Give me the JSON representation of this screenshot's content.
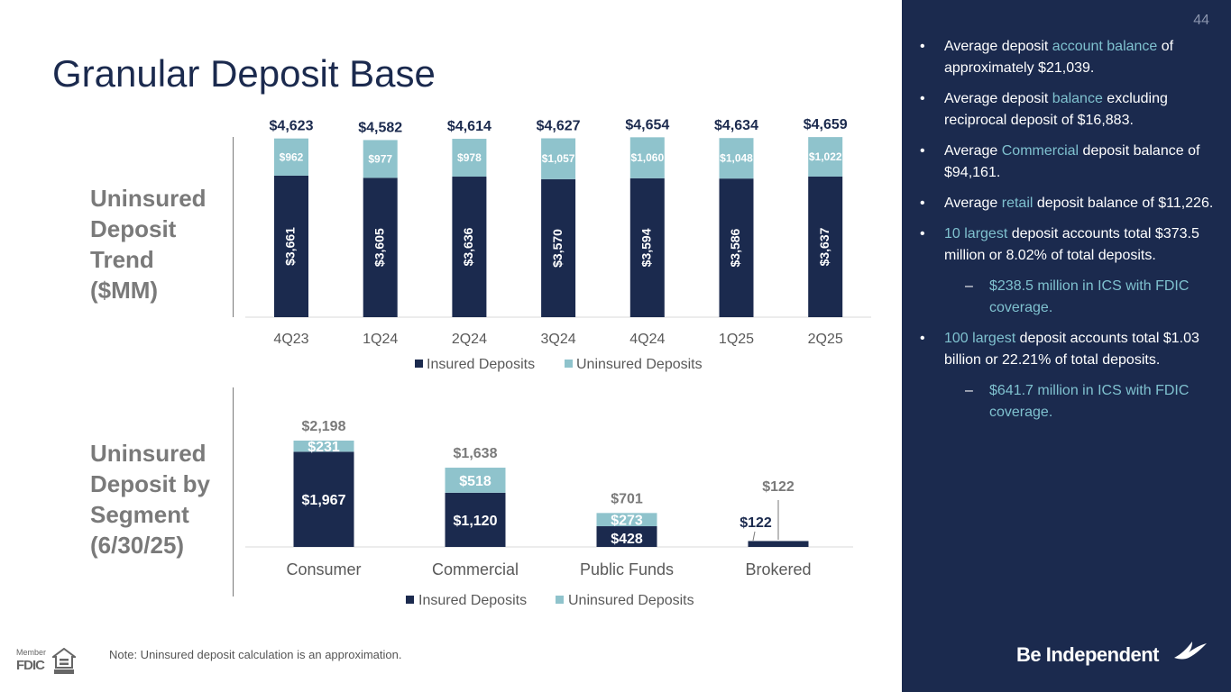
{
  "title": "Granular Deposit Base",
  "page_number": "44",
  "labels": {
    "trend": [
      "Uninsured",
      "Deposit",
      "Trend",
      "($MM)"
    ],
    "segment": [
      "Uninsured",
      "Deposit by",
      "Segment",
      "(6/30/25)"
    ]
  },
  "note": "Note: Uninsured deposit calculation is an approximation.",
  "footer": {
    "fdic_member": "Member",
    "fdic": "FDIC",
    "brand": "Be Independent"
  },
  "colors": {
    "navy": "#1b2a4e",
    "teal": "#8fc3cc",
    "accent": "#7fc1cf",
    "gray": "#7a7a7a"
  },
  "bullets": [
    {
      "parts": [
        {
          "t": "Average deposit "
        },
        {
          "t": "account balance",
          "hl": true
        },
        {
          "t": " of approximately $21,039."
        }
      ]
    },
    {
      "parts": [
        {
          "t": "Average deposit "
        },
        {
          "t": "balance",
          "hl": true
        },
        {
          "t": " excluding reciprocal deposit of $16,883."
        }
      ]
    },
    {
      "parts": [
        {
          "t": "Average "
        },
        {
          "t": "Commercial",
          "hl": true
        },
        {
          "t": " deposit balance of $94,161."
        }
      ]
    },
    {
      "parts": [
        {
          "t": "Average "
        },
        {
          "t": "retail",
          "hl": true
        },
        {
          "t": " deposit balance of $11,226."
        }
      ]
    },
    {
      "parts": [
        {
          "t": "10 largest",
          "hl": true
        },
        {
          "t": " deposit accounts total $373.5 million or 8.02% of total deposits."
        }
      ]
    },
    {
      "sub": true,
      "parts": [
        {
          "t": "$238.5 million in ICS with FDIC coverage."
        }
      ]
    },
    {
      "parts": [
        {
          "t": "100 largest",
          "hl": true
        },
        {
          "t": " deposit accounts total $1.03 billion or 22.21% of total deposits."
        }
      ]
    },
    {
      "sub": true,
      "parts": [
        {
          "t": "$641.7 million in ICS with FDIC coverage."
        }
      ]
    }
  ],
  "chart_data": [
    {
      "type": "bar",
      "stacked": true,
      "title": "Uninsured Deposit Trend ($MM)",
      "categories": [
        "4Q23",
        "1Q24",
        "2Q24",
        "3Q24",
        "4Q24",
        "1Q25",
        "2Q25"
      ],
      "series": [
        {
          "name": "Insured Deposits",
          "values": [
            3661,
            3605,
            3636,
            3570,
            3594,
            3586,
            3637
          ],
          "labels": [
            "$3,661",
            "$3,605",
            "$3,636",
            "$3,570",
            "$3,594",
            "$3,586",
            "$3,637"
          ]
        },
        {
          "name": "Uninsured Deposits",
          "values": [
            962,
            977,
            978,
            1057,
            1060,
            1048,
            1022
          ],
          "labels": [
            "$962",
            "$977",
            "$978",
            "$1,057",
            "$1,060",
            "$1,048",
            "$1,022"
          ]
        }
      ],
      "totals": [
        "$4,623",
        "$4,582",
        "$4,614",
        "$4,627",
        "$4,654",
        "$4,634",
        "$4,659"
      ],
      "legend": [
        "Insured Deposits",
        "Uninsured Deposits"
      ],
      "legend_position": "bottom"
    },
    {
      "type": "bar",
      "stacked": true,
      "title": "Uninsured Deposit by Segment (6/30/25)",
      "categories": [
        "Consumer",
        "Commercial",
        "Public Funds",
        "Brokered"
      ],
      "series": [
        {
          "name": "Insured Deposits",
          "values": [
            1967,
            1120,
            428,
            122
          ],
          "labels": [
            "$1,967",
            "$1,120",
            "$428",
            "$122"
          ]
        },
        {
          "name": "Uninsured Deposits",
          "values": [
            231,
            518,
            273,
            0
          ],
          "labels": [
            "$231",
            "$518",
            "$273",
            ""
          ]
        }
      ],
      "totals": [
        "$2,198",
        "$1,638",
        "$701",
        "$122"
      ],
      "legend": [
        "Insured Deposits",
        "Uninsured Deposits"
      ],
      "legend_position": "bottom"
    }
  ]
}
